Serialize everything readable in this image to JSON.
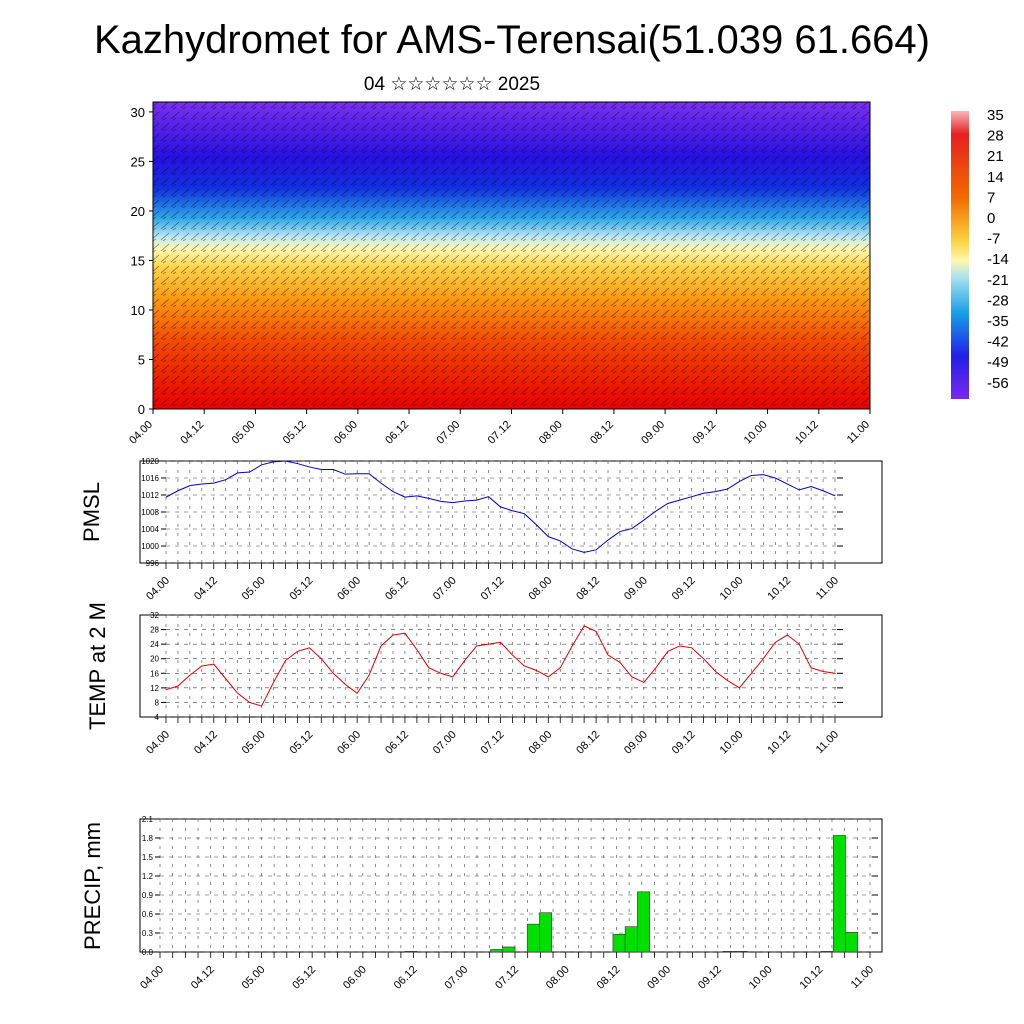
{
  "title": "Kazhydromet for AMS-Terensai(51.039 61.664)",
  "subtitle": "04 ☆☆☆☆☆☆ 2025",
  "colors": {
    "pmsl": "#0000cc",
    "temp": "#dd0000",
    "precip": "#00e000"
  },
  "chart_data": [
    {
      "type": "heatmap",
      "name": "temperature-wind cross section",
      "yticks": [
        "0",
        "5",
        "10",
        "15",
        "20",
        "25",
        "30"
      ],
      "ylim": [
        0,
        31
      ],
      "xticks": [
        "04.00",
        "04.12",
        "05.00",
        "05.12",
        "06.00",
        "06.12",
        "07.00",
        "07.12",
        "08.00",
        "08.12",
        "09.00",
        "09.12",
        "10.00",
        "10.12",
        "11.00"
      ],
      "colorbar_labels": [
        "35",
        "28",
        "21",
        "14",
        "7",
        "0",
        "-7",
        "-14",
        "-21",
        "-28",
        "-35",
        "-42",
        "-49",
        "-56"
      ]
    },
    {
      "type": "line",
      "ylabel": "PMSL",
      "yticks": [
        "1020",
        "1016",
        "1012",
        "1008",
        "1004",
        "1000",
        "996"
      ],
      "ylim": [
        996,
        1020
      ],
      "xticks": [
        "04.00",
        "04.12",
        "05.00",
        "05.12",
        "06.00",
        "06.12",
        "07.00",
        "07.12",
        "08.00",
        "08.12",
        "09.00",
        "09.12",
        "10.00",
        "10.12",
        "11.00"
      ],
      "values": [
        1011.5,
        1013,
        1014.2,
        1014.6,
        1014.8,
        1015.6,
        1017.2,
        1017.4,
        1019.1,
        1019.8,
        1020,
        1019.4,
        1018.6,
        1018,
        1018,
        1016.9,
        1017,
        1017,
        1014.8,
        1012.8,
        1011.5,
        1011.8,
        1011.2,
        1010.5,
        1010.2,
        1010.6,
        1010.8,
        1011.6,
        1009.2,
        1008.3,
        1007.6,
        1005,
        1002.2,
        1001.2,
        999.3,
        998.5,
        999.1,
        1001.4,
        1003.4,
        1004.1,
        1006.1,
        1008.2,
        1010,
        1010.8,
        1011.6,
        1012.4,
        1012.8,
        1013.4,
        1015.2,
        1016.6,
        1016.8,
        1016,
        1014.6,
        1013.2,
        1014,
        1013,
        1011.8
      ]
    },
    {
      "type": "line",
      "ylabel": "TEMP at 2 M",
      "yticks": [
        "32",
        "28",
        "24",
        "20",
        "16",
        "12",
        "8",
        "4"
      ],
      "ylim": [
        4,
        32
      ],
      "xticks": [
        "04.00",
        "04.12",
        "05.00",
        "05.12",
        "06.00",
        "06.12",
        "07.00",
        "07.12",
        "08.00",
        "08.12",
        "09.00",
        "09.12",
        "10.00",
        "10.12",
        "11.00"
      ],
      "values": [
        11.5,
        12.5,
        15.5,
        18,
        18.5,
        14.5,
        10.5,
        8,
        7,
        13.5,
        19.5,
        22,
        23,
        20,
        16,
        13,
        10.5,
        15.5,
        23.5,
        26.5,
        27,
        22.5,
        17.5,
        16,
        15,
        19.5,
        23.5,
        24,
        24.5,
        21,
        18,
        16.8,
        15,
        17.5,
        23.5,
        29,
        27.5,
        21,
        19,
        15,
        13.5,
        17.5,
        22,
        23.5,
        23,
        20,
        16.5,
        14,
        12,
        16,
        20,
        24.5,
        26.5,
        24,
        17.5,
        16.5,
        16
      ]
    },
    {
      "type": "bar",
      "ylabel": "PRECIP, mm",
      "yticks": [
        "2.1",
        "1.8",
        "1.5",
        "1.2",
        "0.9",
        "0.6",
        "0.3",
        "0.0"
      ],
      "ylim": [
        0,
        2.1
      ],
      "xticks": [
        "04.00",
        "04.12",
        "05.00",
        "05.12",
        "06.00",
        "06.12",
        "07.00",
        "07.12",
        "08.00",
        "08.12",
        "09.00",
        "09.12",
        "10.00",
        "10.12",
        "11.00"
      ],
      "values": [
        0,
        0,
        0,
        0,
        0,
        0,
        0,
        0,
        0,
        0,
        0,
        0,
        0,
        0,
        0,
        0,
        0,
        0,
        0,
        0,
        0.01,
        0,
        0,
        0,
        0,
        0,
        0,
        0.04,
        0.08,
        0,
        0.44,
        0.62,
        0,
        0,
        0,
        0,
        0,
        0.28,
        0.4,
        0.95,
        0,
        0,
        0,
        0,
        0,
        0,
        0.01,
        0.01,
        0,
        0,
        0,
        0,
        0,
        0,
        0.01,
        1.84,
        0.31,
        0
      ]
    }
  ]
}
